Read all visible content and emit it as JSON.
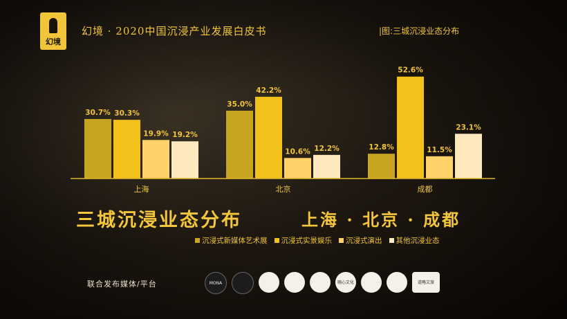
{
  "header": {
    "logo_text": "幻境",
    "title": "幻境 · 2020中国沉浸产业发展白皮书",
    "subtitle": "|图:三城沉浸业态分布"
  },
  "main": {
    "big_title": "三城沉浸业态分布",
    "big_subtitle": "上海 · 北京 · 成都"
  },
  "colors": {
    "s1": "#c7a521",
    "s2": "#f2c21b",
    "s3": "#ffd36a",
    "s4": "#fde9bd",
    "axis": "#e2b62a",
    "text": "#f0c53a"
  },
  "chart_data": {
    "type": "bar",
    "categories": [
      "上海",
      "北京",
      "成都"
    ],
    "series": [
      {
        "name": "沉浸式新媒体艺术展",
        "values": [
          30.7,
          35.0,
          12.8
        ],
        "labels": [
          "30.7%",
          "35.0%",
          "12.8%"
        ]
      },
      {
        "name": "沉浸式实景娱乐",
        "values": [
          30.3,
          42.2,
          52.6
        ],
        "labels": [
          "30.3%",
          "42.2%",
          "52.6%"
        ]
      },
      {
        "name": "沉浸式演出",
        "values": [
          19.9,
          10.6,
          11.5
        ],
        "labels": [
          "19.9%",
          "10.6%",
          "11.5%"
        ]
      },
      {
        "name": "其他沉浸业态",
        "values": [
          19.2,
          12.2,
          23.1
        ],
        "labels": [
          "19.2%",
          "12.2%",
          "23.1%"
        ]
      }
    ],
    "ylim": [
      0,
      60
    ],
    "legend": "bottom",
    "grid": false
  },
  "footer": {
    "partners_label": "联合发布媒体/平台",
    "logos": [
      "MONA",
      "",
      "",
      "",
      "",
      "随心文化",
      "",
      "",
      "道略文旅"
    ]
  }
}
